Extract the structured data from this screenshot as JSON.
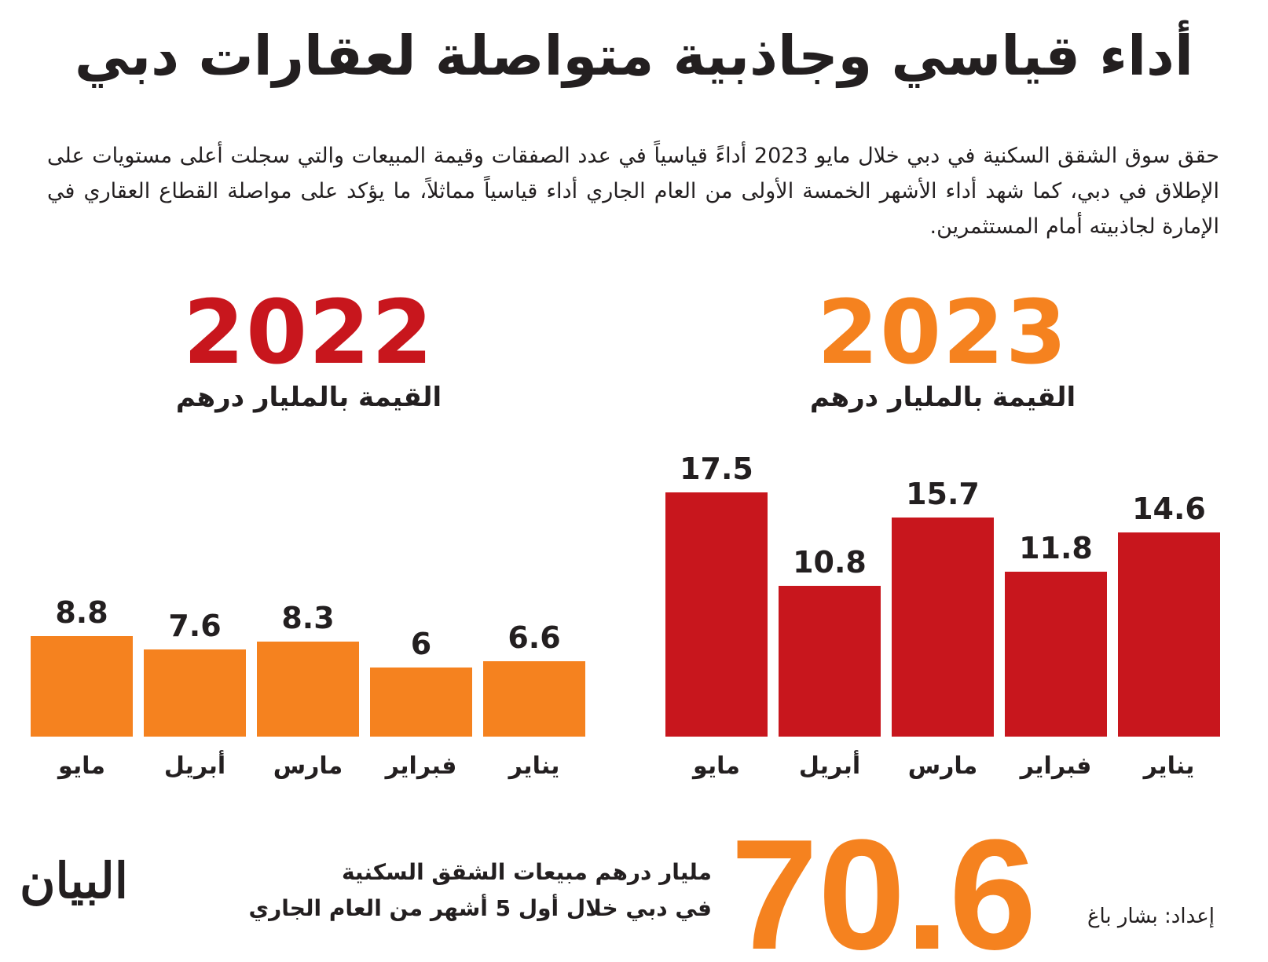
{
  "title": "أداء قياسي وجاذبية متواصلة لعقارات دبي",
  "intro": "حقق سوق الشقق السكنية في دبي خلال مايو 2023 أداءً قياسياً في عدد الصفقات وقيمة المبيعات والتي سجلت أعلى مستويات على الإطلاق في دبي، كما شهد أداء الأشهر الخمسة الأولى من العام الجاري أداء قياسياً مماثلاً، ما يؤكد على مواصلة القطاع العقاري في الإمارة لجاذبيته أمام المستثمرين.",
  "colors": {
    "y2022": "#c8161d",
    "y2023": "#f5821f",
    "bars2023": "#c8161d",
    "bars2022": "#f5821f"
  },
  "chart_data": [
    {
      "type": "bar",
      "title": "2023",
      "ylabel": "القيمة بالمليار درهم",
      "categories": [
        "مايو",
        "أبريل",
        "مارس",
        "فبراير",
        "يناير"
      ],
      "values": [
        17.5,
        10.8,
        15.7,
        11.8,
        14.6
      ],
      "value_labels": [
        "17.5",
        "10.8",
        "15.7",
        "11.8",
        "14.6"
      ]
    },
    {
      "type": "bar",
      "title": "2022",
      "ylabel": "القيمة بالمليار درهم",
      "categories": [
        "مايو",
        "أبريل",
        "مارس",
        "فبراير",
        "يناير"
      ],
      "values": [
        8.8,
        7.6,
        8.3,
        6,
        6.6
      ],
      "value_labels": [
        "8.8",
        "7.6",
        "8.3",
        "6",
        "6.6"
      ]
    }
  ],
  "summary": {
    "value": "70.6",
    "line1": "مليار درهم مبيعات الشقق السكنية",
    "line2": "في دبي خلال أول 5 أشهر من العام الجاري"
  },
  "credit": "إعداد: بشار باغ",
  "logo": "البيان"
}
